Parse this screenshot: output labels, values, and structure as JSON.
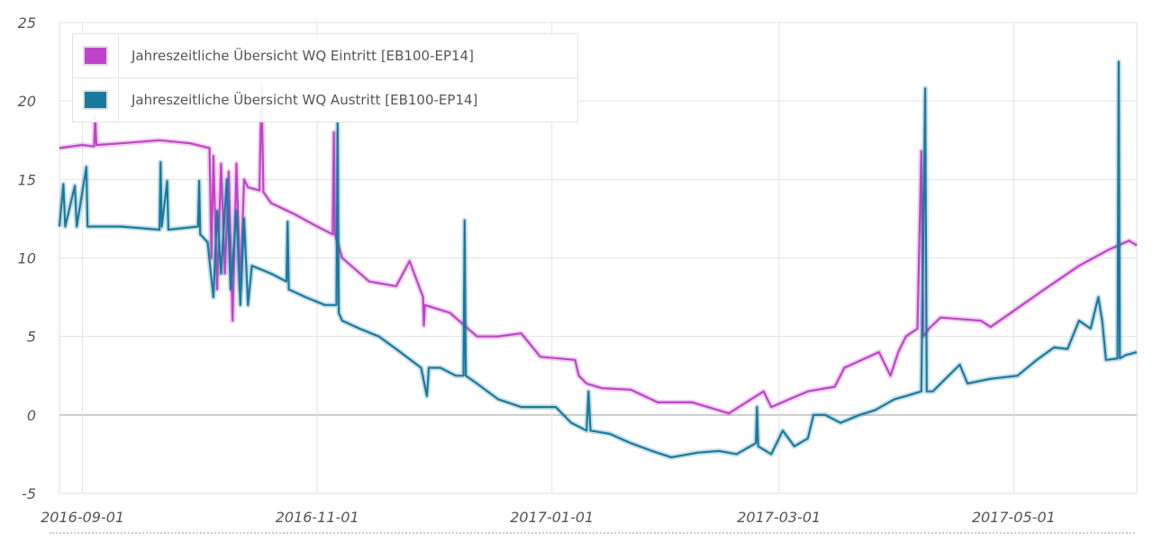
{
  "chart_data": {
    "type": "line",
    "title": "",
    "xlabel": "",
    "ylabel": "",
    "x_origin": "2016-09-01",
    "xlim_days": [
      -6,
      274
    ],
    "ylim": [
      -5,
      25
    ],
    "yticks": [
      -5,
      0,
      5,
      10,
      15,
      20,
      25
    ],
    "xticks": [
      {
        "label": "2016-09-01",
        "day": 0
      },
      {
        "label": "2016-11-01",
        "day": 61
      },
      {
        "label": "2017-01-01",
        "day": 122
      },
      {
        "label": "2017-03-01",
        "day": 181
      },
      {
        "label": "2017-05-01",
        "day": 242
      }
    ],
    "grid": true,
    "legend_position": "top-left",
    "series": [
      {
        "name": "Jahreszeitliche Übersicht WQ Eintritt [EB100-EP14]",
        "color": "#c044c9",
        "points": [
          [
            -6,
            17
          ],
          [
            0,
            17.2
          ],
          [
            3,
            17.1
          ],
          [
            3.3,
            19
          ],
          [
            3.6,
            17.2
          ],
          [
            10,
            17.3
          ],
          [
            20,
            17.5
          ],
          [
            28,
            17.3
          ],
          [
            33,
            17
          ],
          [
            33.5,
            10
          ],
          [
            34,
            16.5
          ],
          [
            35,
            8
          ],
          [
            36,
            16
          ],
          [
            37,
            9
          ],
          [
            38,
            15.5
          ],
          [
            39,
            6
          ],
          [
            40,
            16
          ],
          [
            41,
            8
          ],
          [
            42,
            15
          ],
          [
            43,
            14.5
          ],
          [
            46,
            14.3
          ],
          [
            46.5,
            21
          ],
          [
            47,
            14.2
          ],
          [
            49,
            13.5
          ],
          [
            55,
            12.8
          ],
          [
            61,
            12
          ],
          [
            65,
            11.5
          ],
          [
            65.3,
            18
          ],
          [
            65.6,
            11.5
          ],
          [
            67.5,
            10
          ],
          [
            74.5,
            8.5
          ],
          [
            81.5,
            8.2
          ],
          [
            85,
            9.8
          ],
          [
            88.5,
            7.5
          ],
          [
            88.7,
            5.7
          ],
          [
            89,
            7
          ],
          [
            95.5,
            6.5
          ],
          [
            102.5,
            5
          ],
          [
            108,
            5
          ],
          [
            114,
            5.2
          ],
          [
            119,
            3.7
          ],
          [
            128,
            3.5
          ],
          [
            129,
            2.5
          ],
          [
            131,
            2
          ],
          [
            135,
            1.7
          ],
          [
            142.5,
            1.6
          ],
          [
            149.5,
            0.8
          ],
          [
            158.5,
            0.8
          ],
          [
            168,
            0.1
          ],
          [
            177,
            1.5
          ],
          [
            179,
            0.5
          ],
          [
            188.5,
            1.5
          ],
          [
            195.5,
            1.8
          ],
          [
            198,
            3
          ],
          [
            207,
            4
          ],
          [
            210,
            2.5
          ],
          [
            212,
            4
          ],
          [
            214,
            5
          ],
          [
            217,
            5.5
          ],
          [
            218,
            16.8
          ],
          [
            218.5,
            5
          ],
          [
            220,
            5.5
          ],
          [
            223,
            6.2
          ],
          [
            233.5,
            6
          ],
          [
            236,
            5.6
          ],
          [
            243,
            6.8
          ],
          [
            250,
            8
          ],
          [
            259,
            9.5
          ],
          [
            266.5,
            10.5
          ],
          [
            272,
            11.1
          ],
          [
            274,
            10.8
          ]
        ]
      },
      {
        "name": "Jahreszeitliche Übersicht WQ Austritt [EB100-EP14]",
        "color": "#1a7a9e",
        "points": [
          [
            -6,
            12
          ],
          [
            -5,
            14.7
          ],
          [
            -4.5,
            12
          ],
          [
            -2,
            14.6
          ],
          [
            -1.5,
            12
          ],
          [
            1,
            15.8
          ],
          [
            1.3,
            12
          ],
          [
            10,
            12
          ],
          [
            20,
            11.8
          ],
          [
            20.3,
            16.1
          ],
          [
            20.6,
            12
          ],
          [
            22,
            14.9
          ],
          [
            22.3,
            11.8
          ],
          [
            30,
            12
          ],
          [
            30.3,
            14.9
          ],
          [
            30.6,
            11.5
          ],
          [
            32.5,
            11
          ],
          [
            34,
            7.5
          ],
          [
            35,
            13
          ],
          [
            36,
            9
          ],
          [
            37.5,
            15
          ],
          [
            38.5,
            8
          ],
          [
            40,
            13
          ],
          [
            41,
            7
          ],
          [
            42,
            12.5
          ],
          [
            43,
            7
          ],
          [
            44,
            9.5
          ],
          [
            49,
            9
          ],
          [
            53,
            8.5
          ],
          [
            53.3,
            12.3
          ],
          [
            53.6,
            8
          ],
          [
            58,
            7.5
          ],
          [
            63,
            7
          ],
          [
            66,
            7
          ],
          [
            66.3,
            18.8
          ],
          [
            66.6,
            6.5
          ],
          [
            67.5,
            6
          ],
          [
            72,
            5.5
          ],
          [
            77,
            5
          ],
          [
            81.5,
            4.2
          ],
          [
            88,
            3
          ],
          [
            89.5,
            1.2
          ],
          [
            90,
            3
          ],
          [
            93,
            3
          ],
          [
            97,
            2.5
          ],
          [
            99,
            2.5
          ],
          [
            99.3,
            12.4
          ],
          [
            99.6,
            2.5
          ],
          [
            102.5,
            2
          ],
          [
            108,
            1
          ],
          [
            114,
            0.5
          ],
          [
            123,
            0.5
          ],
          [
            127,
            -0.5
          ],
          [
            131,
            -1
          ],
          [
            131.5,
            1.5
          ],
          [
            132,
            -1
          ],
          [
            137,
            -1.2
          ],
          [
            142.5,
            -1.8
          ],
          [
            148,
            -2.3
          ],
          [
            153,
            -2.7
          ],
          [
            160,
            -2.4
          ],
          [
            165.5,
            -2.3
          ],
          [
            170,
            -2.5
          ],
          [
            175,
            -1.8
          ],
          [
            175.3,
            0.5
          ],
          [
            175.6,
            -2
          ],
          [
            179,
            -2.5
          ],
          [
            182,
            -1
          ],
          [
            185,
            -2
          ],
          [
            188.5,
            -1.5
          ],
          [
            190,
            0
          ],
          [
            193,
            0
          ],
          [
            197,
            -0.5
          ],
          [
            202,
            0
          ],
          [
            206,
            0.3
          ],
          [
            211,
            1
          ],
          [
            214,
            1.2
          ],
          [
            218,
            1.5
          ],
          [
            219,
            20.8
          ],
          [
            219.4,
            1.5
          ],
          [
            221,
            1.5
          ],
          [
            228,
            3.2
          ],
          [
            230,
            2
          ],
          [
            236,
            2.3
          ],
          [
            243,
            2.5
          ],
          [
            248,
            3.5
          ],
          [
            252.5,
            4.3
          ],
          [
            256,
            4.2
          ],
          [
            259,
            6
          ],
          [
            262,
            5.5
          ],
          [
            264,
            7.5
          ],
          [
            265,
            6
          ],
          [
            266,
            3.5
          ],
          [
            269,
            3.6
          ],
          [
            269.3,
            22.5
          ],
          [
            269.6,
            3.6
          ],
          [
            271,
            3.8
          ],
          [
            274,
            4
          ]
        ]
      }
    ]
  }
}
